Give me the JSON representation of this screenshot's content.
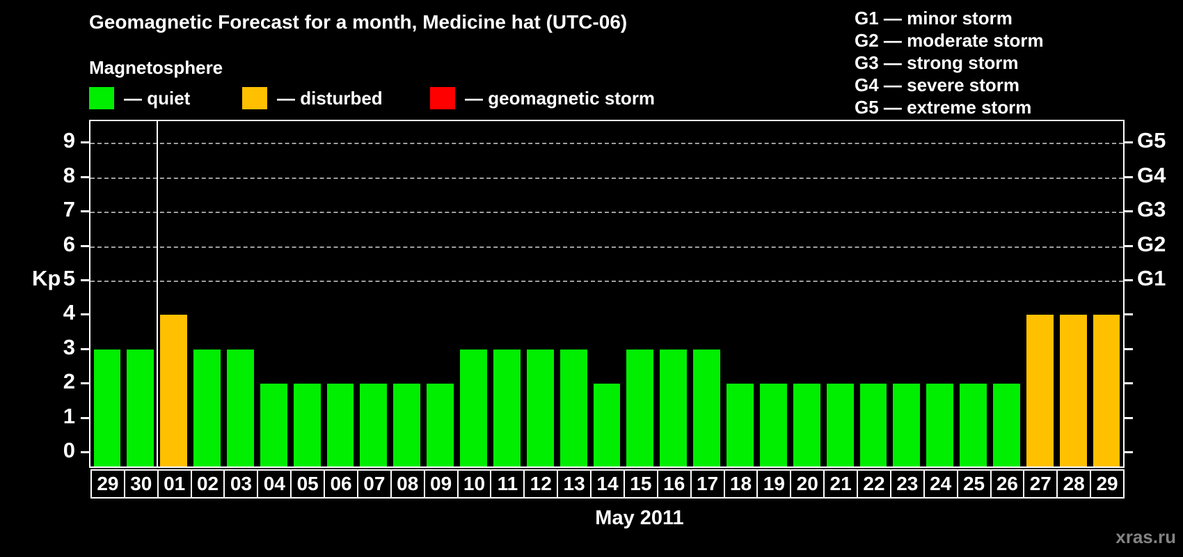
{
  "title": "Geomagnetic Forecast for a month, Medicine hat (UTC-06)",
  "magnetosphere_legend": {
    "heading": "Magnetosphere",
    "items": [
      {
        "name": "quiet",
        "label": "— quiet",
        "color": "#00ee00"
      },
      {
        "name": "disturbed",
        "label": "— disturbed",
        "color": "#ffc000"
      },
      {
        "name": "storm",
        "label": "— geomagnetic storm",
        "color": "#ff0000"
      }
    ]
  },
  "g_scale_legend": {
    "lines": [
      "G1 — minor storm",
      "G2 — moderate storm",
      "G3 — strong storm",
      "G4 — severe storm",
      "G5 — extreme storm"
    ]
  },
  "chart_data": {
    "type": "bar",
    "title": "Geomagnetic Forecast for a month, Medicine hat (UTC-06)",
    "xlabel": "May 2011",
    "ylabel": "Kp",
    "ylim": [
      0,
      9
    ],
    "yticks": [
      0,
      1,
      2,
      3,
      4,
      5,
      6,
      7,
      8,
      9
    ],
    "gridlines_at": [
      5,
      6,
      7,
      8,
      9
    ],
    "grid": "dashed horizontal lines at G-storm levels only",
    "legend_position": "top-left",
    "right_axis": [
      {
        "kp": 5,
        "label": "G1"
      },
      {
        "kp": 6,
        "label": "G2"
      },
      {
        "kp": 7,
        "label": "G3"
      },
      {
        "kp": 8,
        "label": "G4"
      },
      {
        "kp": 9,
        "label": "G5"
      }
    ],
    "month_separator_after_index": 1,
    "categories": [
      "29",
      "30",
      "01",
      "02",
      "03",
      "04",
      "05",
      "06",
      "07",
      "08",
      "09",
      "10",
      "11",
      "12",
      "13",
      "14",
      "15",
      "16",
      "17",
      "18",
      "19",
      "20",
      "21",
      "22",
      "23",
      "24",
      "25",
      "26",
      "27",
      "28",
      "29"
    ],
    "values": [
      3,
      3,
      4,
      3,
      3,
      2,
      2,
      2,
      2,
      2,
      2,
      3,
      3,
      3,
      3,
      2,
      3,
      3,
      3,
      2,
      2,
      2,
      2,
      2,
      2,
      2,
      2,
      2,
      4,
      4,
      4
    ],
    "statuses": [
      "quiet",
      "quiet",
      "disturbed",
      "quiet",
      "quiet",
      "quiet",
      "quiet",
      "quiet",
      "quiet",
      "quiet",
      "quiet",
      "quiet",
      "quiet",
      "quiet",
      "quiet",
      "quiet",
      "quiet",
      "quiet",
      "quiet",
      "quiet",
      "quiet",
      "quiet",
      "quiet",
      "quiet",
      "quiet",
      "quiet",
      "quiet",
      "quiet",
      "disturbed",
      "disturbed",
      "disturbed"
    ],
    "palette": {
      "quiet": "#00ee00",
      "disturbed": "#ffc000",
      "storm": "#ff0000"
    }
  },
  "watermark": "xras.ru"
}
